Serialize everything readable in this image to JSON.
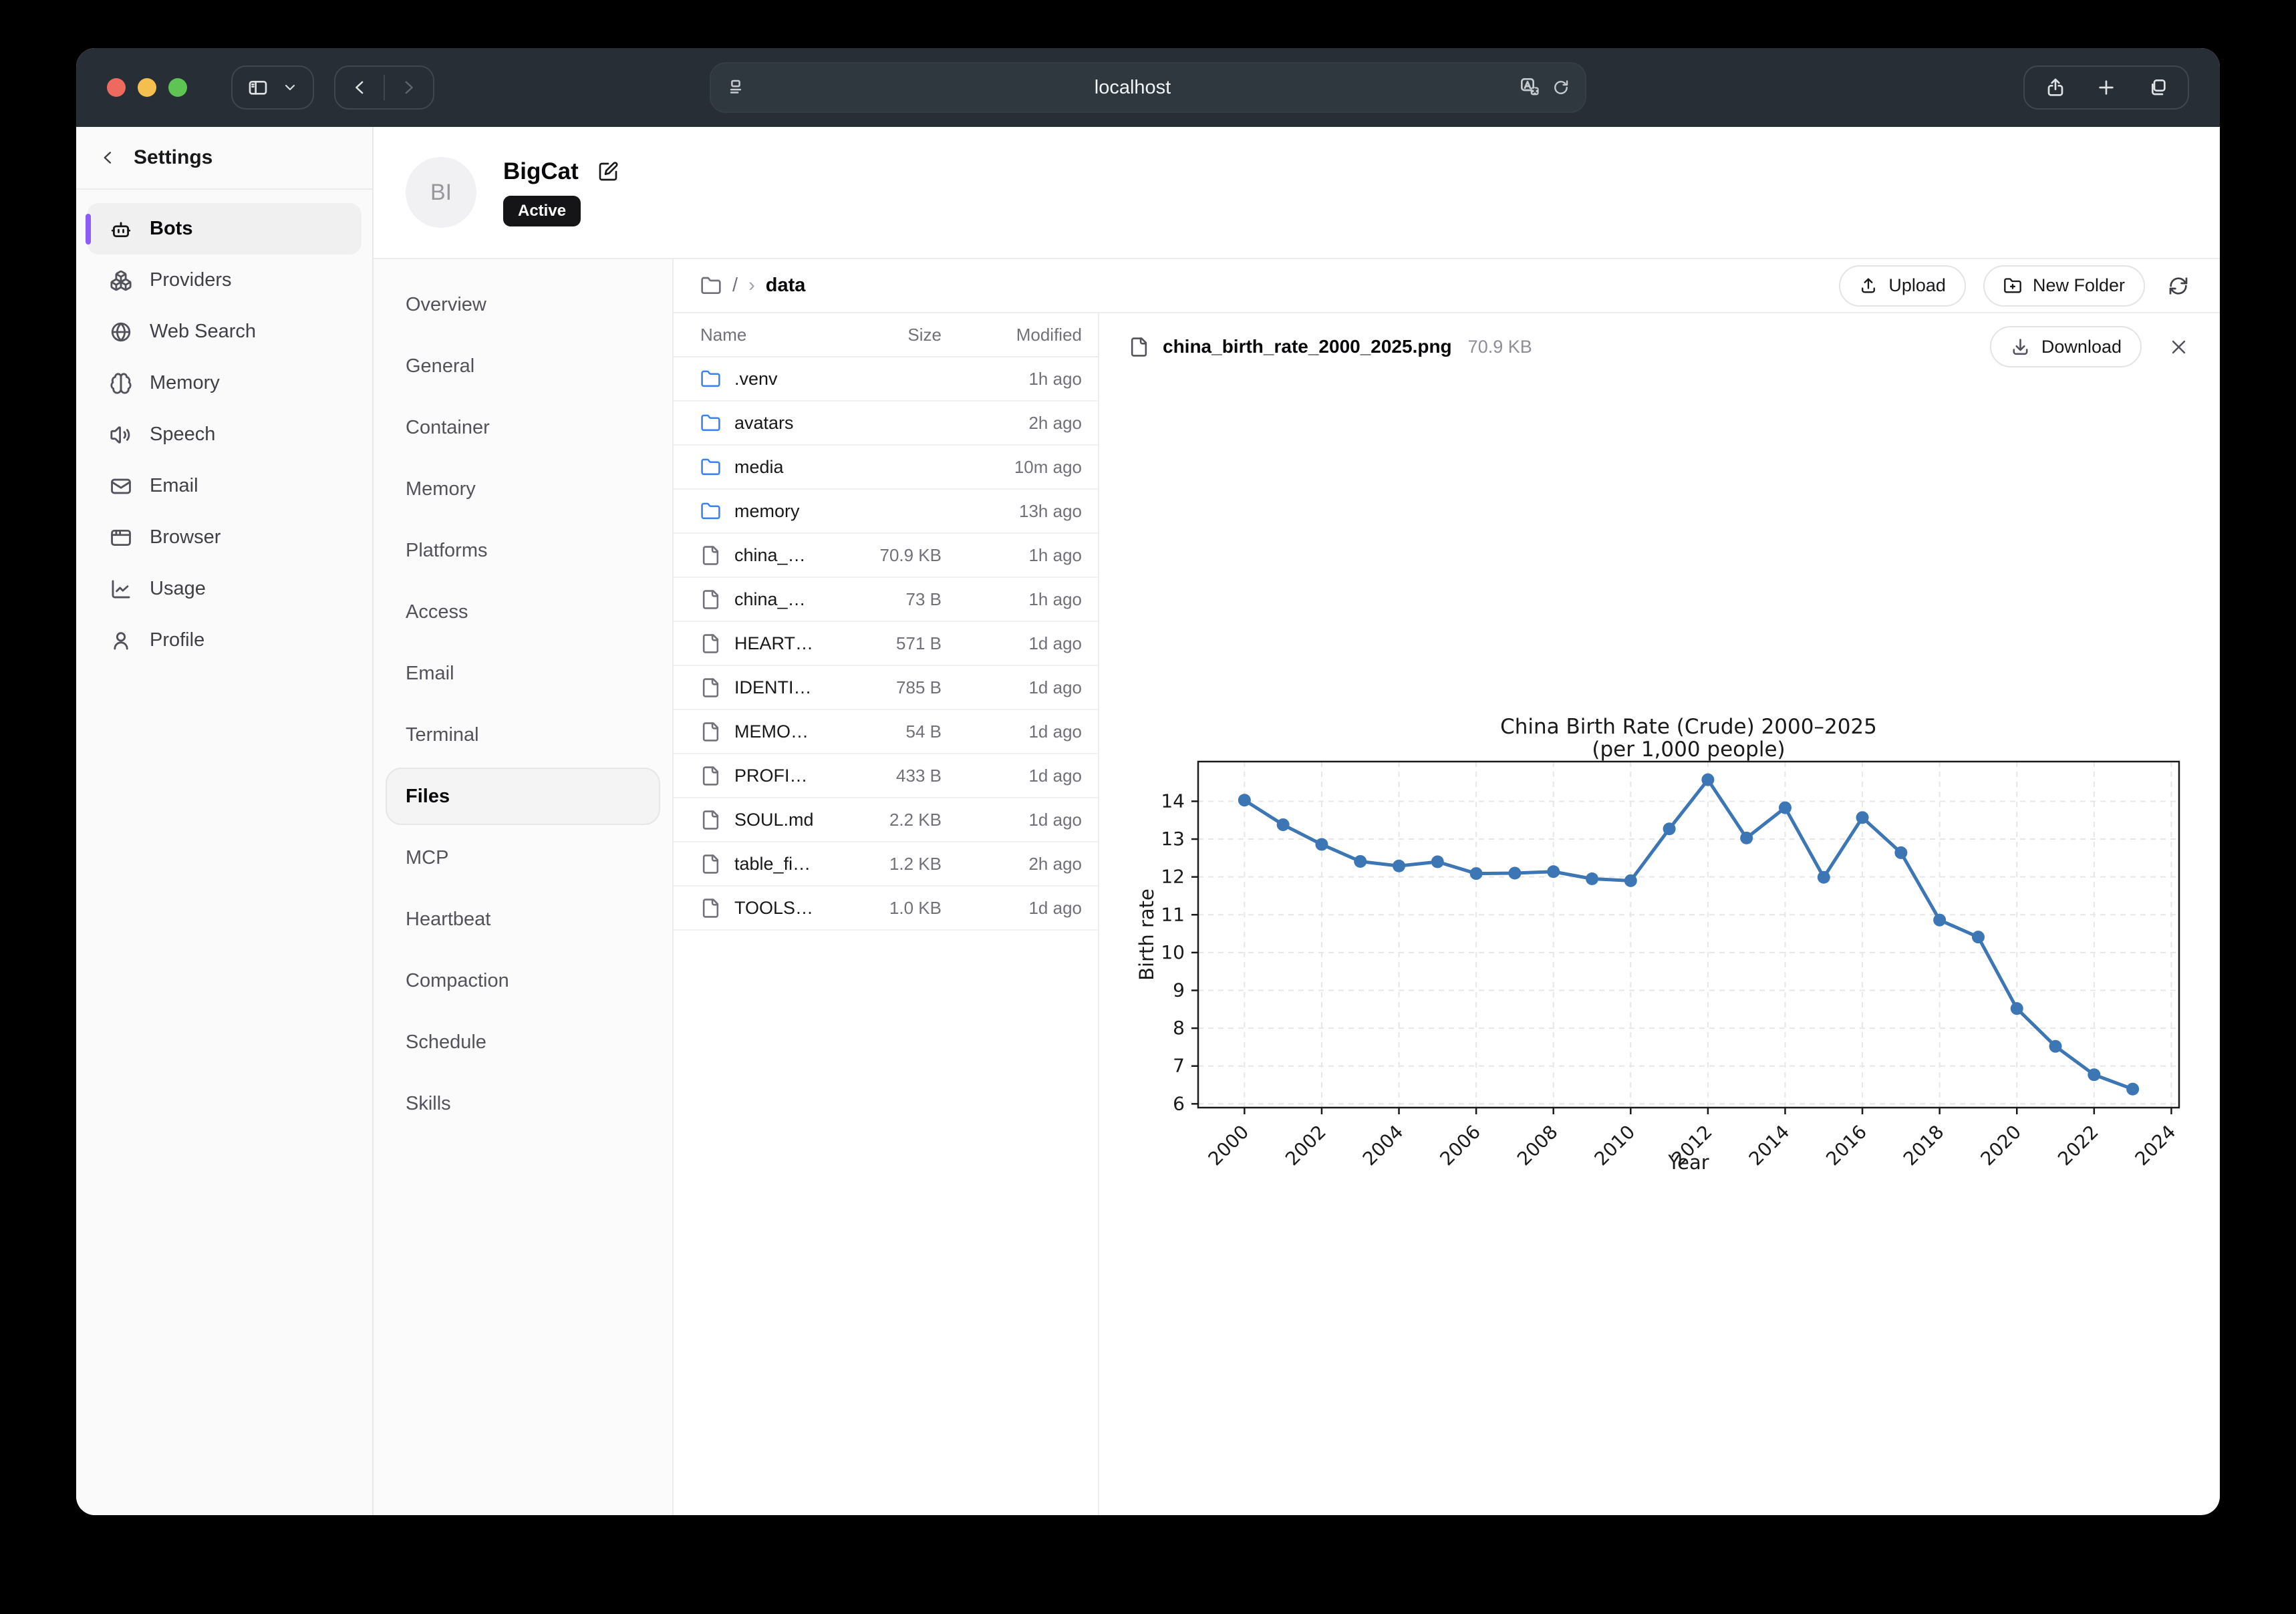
{
  "colors": {
    "accent_purple": "#8b5cf6",
    "folder_blue": "#3b82f6",
    "chart_line_blue": "#3d76b4",
    "badge_bg": "#151517",
    "chrome_bg": "#272e35",
    "traffic_red": "#ee6a5f",
    "traffic_yellow": "#f4bf4f",
    "traffic_green": "#5ec454"
  },
  "chrome": {
    "url": "localhost"
  },
  "sidebar": {
    "title": "Settings",
    "items": [
      {
        "label": "Bots",
        "icon": "bot-icon",
        "selected": true
      },
      {
        "label": "Providers",
        "icon": "providers-icon",
        "selected": false
      },
      {
        "label": "Web Search",
        "icon": "web-search-icon",
        "selected": false
      },
      {
        "label": "Memory",
        "icon": "memory-icon",
        "selected": false
      },
      {
        "label": "Speech",
        "icon": "speech-icon",
        "selected": false
      },
      {
        "label": "Email",
        "icon": "email-icon",
        "selected": false
      },
      {
        "label": "Browser",
        "icon": "browser-icon",
        "selected": false
      },
      {
        "label": "Usage",
        "icon": "usage-icon",
        "selected": false
      },
      {
        "label": "Profile",
        "icon": "profile-icon",
        "selected": false
      }
    ]
  },
  "profile": {
    "initials": "BI",
    "name": "BigCat",
    "status": "Active"
  },
  "bot_nav": {
    "items": [
      {
        "label": "Overview",
        "selected": false
      },
      {
        "label": "General",
        "selected": false
      },
      {
        "label": "Container",
        "selected": false
      },
      {
        "label": "Memory",
        "selected": false
      },
      {
        "label": "Platforms",
        "selected": false
      },
      {
        "label": "Access",
        "selected": false
      },
      {
        "label": "Email",
        "selected": false
      },
      {
        "label": "Terminal",
        "selected": false
      },
      {
        "label": "Files",
        "selected": true
      },
      {
        "label": "MCP",
        "selected": false
      },
      {
        "label": "Heartbeat",
        "selected": false
      },
      {
        "label": "Compaction",
        "selected": false
      },
      {
        "label": "Schedule",
        "selected": false
      },
      {
        "label": "Skills",
        "selected": false
      }
    ]
  },
  "files": {
    "breadcrumb": {
      "root": "/",
      "separator": "›",
      "current": "data"
    },
    "actions": {
      "upload": "Upload",
      "new_folder": "New Folder"
    },
    "table": {
      "headers": [
        "Name",
        "Size",
        "Modified"
      ],
      "rows": [
        {
          "name": ".venv",
          "type": "folder",
          "size": "",
          "modified": "1h ago"
        },
        {
          "name": "avatars",
          "type": "folder",
          "size": "",
          "modified": "2h ago"
        },
        {
          "name": "media",
          "type": "folder",
          "size": "",
          "modified": "10m ago"
        },
        {
          "name": "memory",
          "type": "folder",
          "size": "",
          "modified": "13h ago"
        },
        {
          "name": "china_birth…",
          "type": "file",
          "size": "70.9 KB",
          "modified": "1h ago"
        },
        {
          "name": "china_birth…",
          "type": "file",
          "size": "73 B",
          "modified": "1h ago"
        },
        {
          "name": "HEARTBEAT…",
          "type": "file",
          "size": "571 B",
          "modified": "1d ago"
        },
        {
          "name": "IDENTITY.md",
          "type": "file",
          "size": "785 B",
          "modified": "1d ago"
        },
        {
          "name": "MEMORY.md",
          "type": "file",
          "size": "54 B",
          "modified": "1d ago"
        },
        {
          "name": "PROFILES.md",
          "type": "file",
          "size": "433 B",
          "modified": "1d ago"
        },
        {
          "name": "SOUL.md",
          "type": "file",
          "size": "2.2 KB",
          "modified": "1d ago"
        },
        {
          "name": "table_filter_…",
          "type": "file",
          "size": "1.2 KB",
          "modified": "2h ago"
        },
        {
          "name": "TOOLS.md",
          "type": "file",
          "size": "1.0 KB",
          "modified": "1d ago"
        }
      ]
    }
  },
  "preview": {
    "filename": "china_birth_rate_2000_2025.png",
    "size": "70.9 KB",
    "download": "Download"
  },
  "chart_data": {
    "type": "line",
    "title": "China Birth Rate (Crude) 2000–2025",
    "subtitle": "(per 1,000 people)",
    "xlabel": "Year",
    "ylabel": "Birth rate",
    "x": [
      2000,
      2001,
      2002,
      2003,
      2004,
      2005,
      2006,
      2007,
      2008,
      2009,
      2010,
      2011,
      2012,
      2013,
      2014,
      2015,
      2016,
      2017,
      2018,
      2019,
      2020,
      2021,
      2022,
      2023
    ],
    "values": [
      14.03,
      13.38,
      12.86,
      12.41,
      12.29,
      12.4,
      12.09,
      12.1,
      12.14,
      11.95,
      11.9,
      13.27,
      14.57,
      13.03,
      13.83,
      11.99,
      13.57,
      12.64,
      10.86,
      10.41,
      8.52,
      7.52,
      6.77,
      6.39
    ],
    "xlim": [
      1998.8,
      2024.2
    ],
    "ylim": [
      5.9,
      15.05
    ],
    "xticks": [
      2000,
      2002,
      2004,
      2006,
      2008,
      2010,
      2012,
      2014,
      2016,
      2018,
      2020,
      2022,
      2024
    ],
    "yticks": [
      6,
      7,
      8,
      9,
      10,
      11,
      12,
      13,
      14
    ],
    "grid": true,
    "legend": "none",
    "line_color": "#3d76b4",
    "marker": "o"
  }
}
